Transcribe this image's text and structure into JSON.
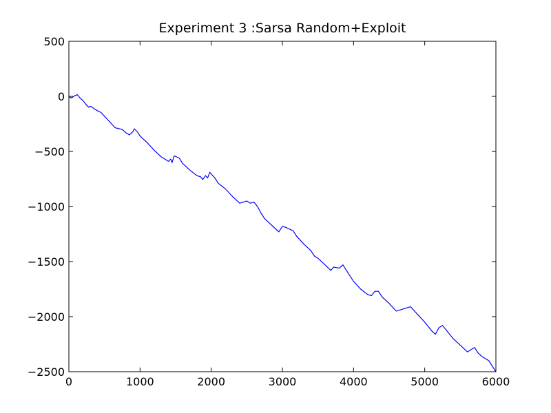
{
  "chart_data": {
    "type": "line",
    "title": "Experiment 3 :Sarsa Random+Exploit",
    "x": [
      0,
      30,
      60,
      80,
      100,
      120,
      150,
      200,
      250,
      280,
      300,
      320,
      350,
      400,
      450,
      500,
      600,
      650,
      750,
      800,
      850,
      900,
      920,
      960,
      1000,
      1100,
      1200,
      1300,
      1400,
      1430,
      1450,
      1480,
      1550,
      1600,
      1700,
      1800,
      1850,
      1880,
      1920,
      1950,
      1980,
      2050,
      2100,
      2200,
      2300,
      2400,
      2450,
      2500,
      2550,
      2600,
      2650,
      2700,
      2750,
      2800,
      2900,
      2950,
      3000,
      3050,
      3150,
      3200,
      3300,
      3400,
      3450,
      3500,
      3600,
      3680,
      3720,
      3800,
      3850,
      3900,
      4000,
      4100,
      4200,
      4250,
      4300,
      4350,
      4400,
      4500,
      4600,
      4700,
      4800,
      4900,
      5000,
      5100,
      5150,
      5200,
      5250,
      5300,
      5400,
      5500,
      5600,
      5650,
      5700,
      5750,
      5800,
      5900,
      6000
    ],
    "series": [
      {
        "name": "Sarsa Random+Exploit",
        "color": "#0000ff",
        "values": [
          0,
          -15,
          -5,
          5,
          10,
          15,
          -10,
          -40,
          -80,
          -100,
          -90,
          -95,
          -110,
          -130,
          -145,
          -180,
          -250,
          -285,
          -300,
          -330,
          -350,
          -320,
          -295,
          -320,
          -360,
          -420,
          -490,
          -550,
          -590,
          -570,
          -600,
          -540,
          -560,
          -610,
          -670,
          -720,
          -730,
          -755,
          -720,
          -740,
          -690,
          -740,
          -790,
          -840,
          -910,
          -970,
          -960,
          -950,
          -970,
          -960,
          -1000,
          -1060,
          -1110,
          -1140,
          -1200,
          -1230,
          -1180,
          -1190,
          -1220,
          -1270,
          -1340,
          -1400,
          -1450,
          -1470,
          -1530,
          -1580,
          -1550,
          -1560,
          -1530,
          -1580,
          -1680,
          -1750,
          -1800,
          -1810,
          -1770,
          -1770,
          -1820,
          -1880,
          -1950,
          -1930,
          -1910,
          -1980,
          -2050,
          -2130,
          -2160,
          -2100,
          -2080,
          -2120,
          -2200,
          -2260,
          -2320,
          -2300,
          -2280,
          -2330,
          -2360,
          -2400,
          -2500
        ]
      }
    ],
    "xlim": [
      0,
      6000
    ],
    "xticks": [
      0,
      1000,
      2000,
      3000,
      4000,
      5000,
      6000
    ],
    "ylim": [
      -2500,
      500
    ],
    "yticks": [
      {
        "value": -2500,
        "label": "−2500"
      },
      {
        "value": -2000,
        "label": "−2000"
      },
      {
        "value": -1500,
        "label": "−1500"
      },
      {
        "value": -1000,
        "label": "−1000"
      },
      {
        "value": -500,
        "label": "−500"
      },
      0,
      500
    ]
  }
}
